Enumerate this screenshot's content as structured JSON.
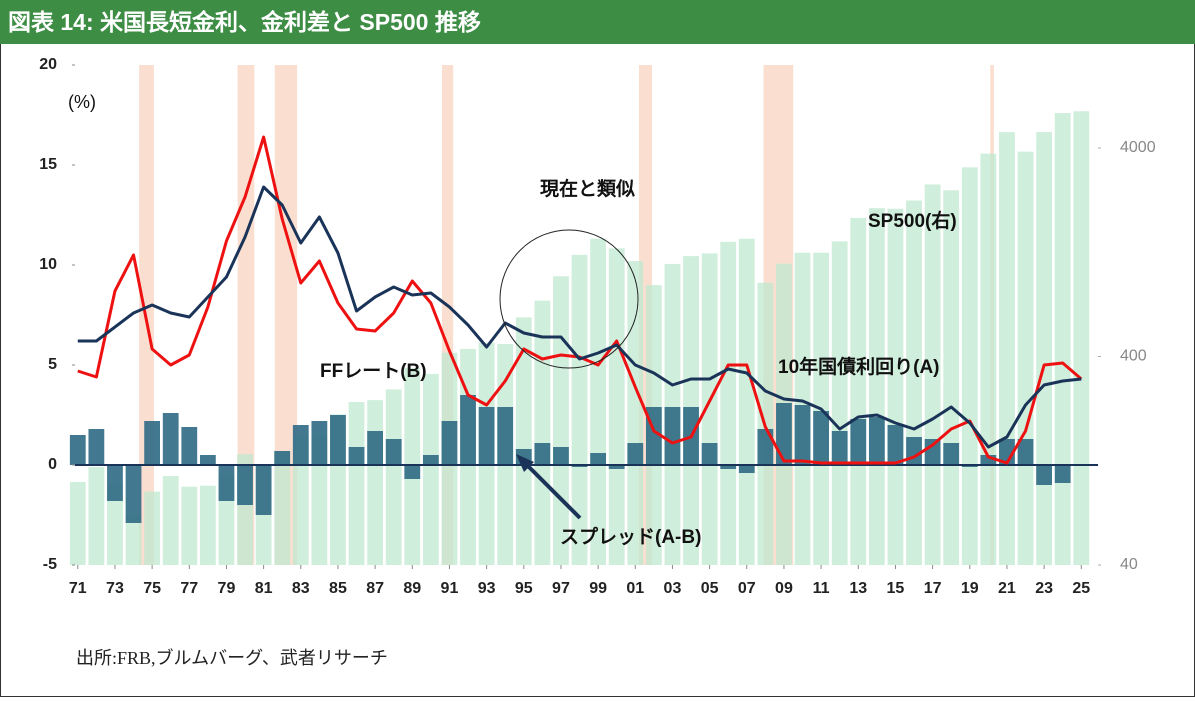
{
  "chart_data": {
    "type": "combo",
    "title": "図表 14: 米国長短金利、金利差と SP500 推移",
    "y_unit_label": "(%)",
    "source": "出所:FRB,ブルムバーグ、武者リサーチ",
    "annotations": {
      "similar": "現在と類似",
      "sp500": "SP500(右)",
      "ff": "FFレート(B)",
      "ten_year": "10年国債利回り(A)",
      "spread": "スプレッド(A-B)"
    },
    "x": [
      1971,
      1972,
      1973,
      1974,
      1975,
      1976,
      1977,
      1978,
      1979,
      1980,
      1981,
      1982,
      1983,
      1984,
      1985,
      1986,
      1987,
      1988,
      1989,
      1990,
      1991,
      1992,
      1993,
      1994,
      1995,
      1996,
      1997,
      1998,
      1999,
      2000,
      2001,
      2002,
      2003,
      2004,
      2005,
      2006,
      2007,
      2008,
      2009,
      2010,
      2011,
      2012,
      2013,
      2014,
      2015,
      2016,
      2017,
      2018,
      2019,
      2020,
      2021,
      2022,
      2023,
      2024,
      2025
    ],
    "series": [
      {
        "name": "SP500",
        "kind": "bar",
        "axis": "y2",
        "color": "#bfe8cf",
        "values": [
          100,
          118,
          97,
          69,
          90,
          107,
          95,
          96,
          108,
          136,
          122,
          141,
          165,
          167,
          211,
          242,
          247,
          278,
          353,
          330,
          417,
          435,
          466,
          459,
          616,
          741,
          970,
          1229,
          1469,
          1320,
          1148,
          880,
          1112,
          1212,
          1248,
          1418,
          1468,
          903,
          1115,
          1258,
          1258,
          1426,
          1848,
          2059,
          2044,
          2239,
          2674,
          2507,
          3231,
          3756,
          4766,
          3840,
          4770,
          5882,
          6000
        ]
      },
      {
        "name": "スプレッド",
        "kind": "bar",
        "color": "#2f6a84",
        "values": [
          1.5,
          1.8,
          -1.8,
          -2.9,
          2.2,
          2.6,
          1.9,
          0.5,
          -1.8,
          -2.0,
          -2.5,
          0.7,
          2.0,
          2.2,
          2.5,
          0.9,
          1.7,
          1.3,
          -0.7,
          0.5,
          2.2,
          3.5,
          2.9,
          2.9,
          0.8,
          1.1,
          0.9,
          -0.1,
          0.6,
          -0.2,
          1.1,
          2.9,
          2.9,
          2.9,
          1.1,
          -0.2,
          -0.4,
          1.8,
          3.1,
          3.0,
          2.7,
          1.7,
          2.3,
          2.4,
          2.0,
          1.4,
          1.3,
          1.1,
          -0.1,
          0.5,
          1.3,
          1.3,
          -1.0,
          -0.9,
          0.0
        ]
      },
      {
        "name": "FFレート",
        "kind": "line",
        "color": "#ee1111",
        "values": [
          4.7,
          4.4,
          8.7,
          10.5,
          5.8,
          5.0,
          5.5,
          7.9,
          11.2,
          13.4,
          16.4,
          12.3,
          9.1,
          10.2,
          8.1,
          6.8,
          6.7,
          7.6,
          9.2,
          8.1,
          5.7,
          3.5,
          3.0,
          4.2,
          5.8,
          5.3,
          5.5,
          5.4,
          5.0,
          6.2,
          3.9,
          1.7,
          1.1,
          1.4,
          3.2,
          5.0,
          5.0,
          1.9,
          0.2,
          0.2,
          0.1,
          0.1,
          0.1,
          0.1,
          0.1,
          0.4,
          1.0,
          1.8,
          2.2,
          0.4,
          0.1,
          1.7,
          5.0,
          5.1,
          4.3
        ]
      },
      {
        "name": "10年国債利回り",
        "kind": "line",
        "color": "#1a3358",
        "values": [
          6.2,
          6.2,
          6.9,
          7.6,
          8.0,
          7.6,
          7.4,
          8.4,
          9.4,
          11.4,
          13.9,
          13.0,
          11.1,
          12.4,
          10.6,
          7.7,
          8.4,
          8.9,
          8.5,
          8.6,
          7.9,
          7.0,
          5.9,
          7.1,
          6.6,
          6.4,
          6.4,
          5.3,
          5.6,
          6.0,
          5.0,
          4.6,
          4.0,
          4.3,
          4.3,
          4.8,
          4.6,
          3.7,
          3.3,
          3.2,
          2.8,
          1.8,
          2.4,
          2.5,
          2.1,
          1.8,
          2.3,
          2.9,
          2.1,
          0.9,
          1.4,
          3.0,
          4.0,
          4.2,
          4.3
        ]
      }
    ],
    "shaded_periods": [
      [
        1974.3,
        1975.1
      ],
      [
        1979.6,
        1980.5
      ],
      [
        1981.6,
        1982.8
      ],
      [
        1990.6,
        1991.2
      ],
      [
        2001.2,
        2001.9
      ],
      [
        2007.9,
        2009.5
      ],
      [
        2020.1,
        2020.3
      ]
    ],
    "shade_color": "#f9d9c8",
    "xlim": [
      1970.85,
      2025.9
    ],
    "xticks": [
      {
        "value": 1971,
        "label": "71"
      },
      {
        "value": 1973,
        "label": "73"
      },
      {
        "value": 1975,
        "label": "75"
      },
      {
        "value": 1977,
        "label": "77"
      },
      {
        "value": 1979,
        "label": "79"
      },
      {
        "value": 1981,
        "label": "81"
      },
      {
        "value": 1983,
        "label": "83"
      },
      {
        "value": 1985,
        "label": "85"
      },
      {
        "value": 1987,
        "label": "87"
      },
      {
        "value": 1989,
        "label": "89"
      },
      {
        "value": 1991,
        "label": "91"
      },
      {
        "value": 1993,
        "label": "93"
      },
      {
        "value": 1995,
        "label": "95"
      },
      {
        "value": 1997,
        "label": "97"
      },
      {
        "value": 1999,
        "label": "99"
      },
      {
        "value": 2001,
        "label": "01"
      },
      {
        "value": 2003,
        "label": "03"
      },
      {
        "value": 2005,
        "label": "05"
      },
      {
        "value": 2007,
        "label": "07"
      },
      {
        "value": 2009,
        "label": "09"
      },
      {
        "value": 2011,
        "label": "11"
      },
      {
        "value": 2013,
        "label": "13"
      },
      {
        "value": 2015,
        "label": "15"
      },
      {
        "value": 2017,
        "label": "17"
      },
      {
        "value": 2019,
        "label": "19"
      },
      {
        "value": 2021,
        "label": "21"
      },
      {
        "value": 2023,
        "label": "23"
      },
      {
        "value": 2025,
        "label": "25"
      }
    ],
    "ylim": [
      -5,
      20
    ],
    "yticks": [
      -5,
      0,
      5,
      10,
      15,
      20
    ],
    "y2lim": [
      40,
      10000
    ],
    "y2ticks": [
      40,
      400,
      4000
    ],
    "y2_log": true
  }
}
